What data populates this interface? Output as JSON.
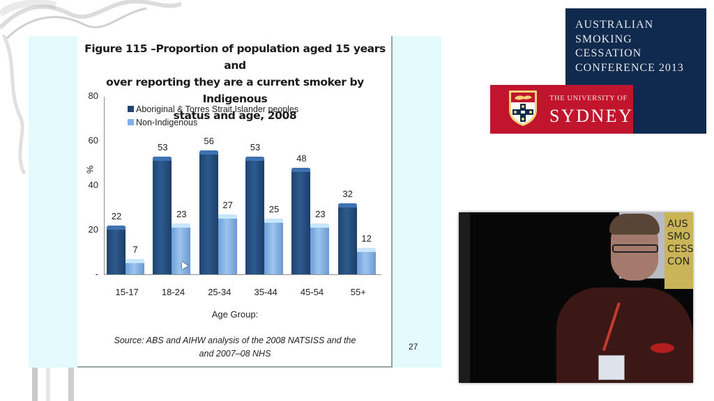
{
  "slide": {
    "title": "Figure 115 –Proportion of population aged 15 years and over reporting they are a current smoker by Indigenous status and age, 2008",
    "title_lines": [
      "Figure 115 –Proportion of population aged 15 years and",
      "over reporting they are a current smoker by Indigenous",
      "status and age, 2008"
    ],
    "source_lines": [
      "Source: ABS and AIHW analysis of the 2008 NATSISS and the",
      "and 2007–08 NHS"
    ],
    "page_number": "27"
  },
  "chart_data": {
    "type": "bar",
    "title": "Figure 115 –Proportion of population aged 15 years and over reporting they are a current smoker by Indigenous status and age, 2008",
    "xlabel": "Age Group:",
    "ylabel": "%",
    "ylim": [
      0,
      80
    ],
    "yticks": [
      "-",
      "20",
      "40",
      "60",
      "80"
    ],
    "categories": [
      "15-17",
      "18-24",
      "25-34",
      "35-44",
      "45-54",
      "55+"
    ],
    "series": [
      {
        "name": "Aboriginal & Torres Strait Islander peoples",
        "color": "#1f4470",
        "values": [
          22,
          53,
          56,
          53,
          48,
          32
        ]
      },
      {
        "name": "Non-Indigenous",
        "color": "#7eb0ea",
        "values": [
          7,
          23,
          27,
          25,
          23,
          12
        ]
      }
    ],
    "legend_position": "top-left inside",
    "grid": false,
    "source": "Source: ABS and AIHW analysis of the 2008 NATSISS and the and 2007–08 NHS"
  },
  "conference": {
    "name_lines": "AUSTRALIAN\nSMOKING\nCESSATION\nCONFERENCE 2013",
    "university_of": "THE UNIVERSITY OF",
    "university_name": "SYDNEY",
    "navy": "#0f2a4d",
    "red": "#c0152c"
  },
  "video": {
    "banner_text": "AUS\nSMO\nCESS\nCON"
  }
}
